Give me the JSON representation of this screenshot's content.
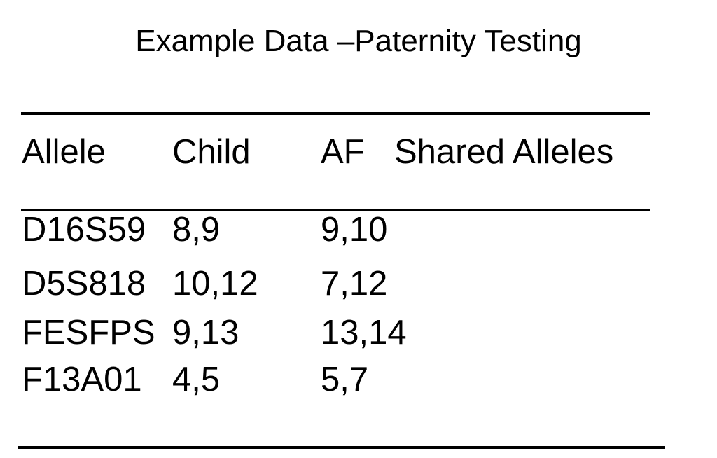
{
  "title": "Example Data –Paternity Testing",
  "table": {
    "columns": {
      "allele": "Allele",
      "child": "Child",
      "af": "AF",
      "shared": "Shared Alleles"
    },
    "rows": [
      {
        "allele": "D16S59",
        "child": "8,9",
        "af": "9,10",
        "shared": ""
      },
      {
        "allele": "D5S818",
        "child": "10,12",
        "af": "7,12",
        "shared": ""
      },
      {
        "allele": "FESFPS",
        "child": "9,13",
        "af": "13,14",
        "shared": ""
      },
      {
        "allele": "F13A01",
        "child": "4,5",
        "af": "5,7",
        "shared": ""
      }
    ]
  },
  "colors": {
    "background": "#ffffff",
    "text": "#000000",
    "rule": "#000000"
  }
}
